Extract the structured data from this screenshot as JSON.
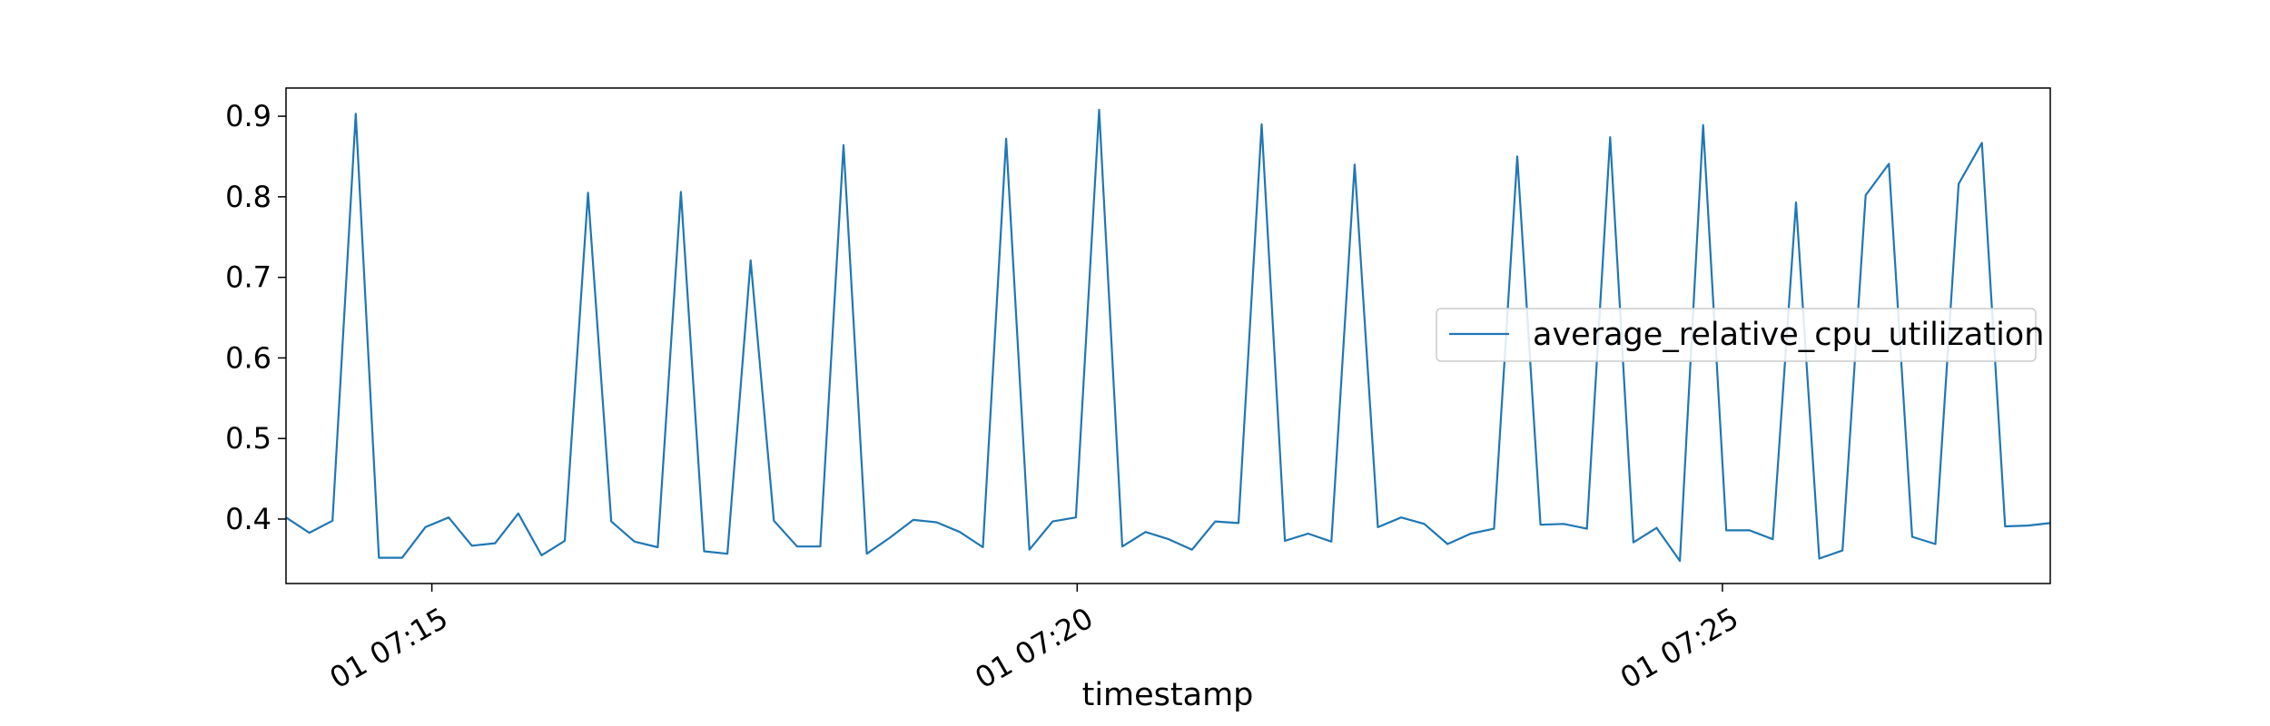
{
  "chart_data": {
    "type": "line",
    "title": "",
    "xlabel": "timestamp",
    "ylabel": "",
    "x_ticks": [
      {
        "minute": 15,
        "label": "01 07:15"
      },
      {
        "minute": 20,
        "label": "01 07:20"
      },
      {
        "minute": 25,
        "label": "01 07:25"
      }
    ],
    "y_ticks": [
      0.4,
      0.5,
      0.6,
      0.7,
      0.8,
      0.9
    ],
    "y_tick_labels": [
      "0.4",
      "0.5",
      "0.6",
      "0.7",
      "0.8",
      "0.9"
    ],
    "xlim_minutes": [
      13.87,
      27.54
    ],
    "ylim": [
      0.32,
      0.935
    ],
    "grid": false,
    "legend": "center-right",
    "colors": {
      "series": "#1f77b4"
    },
    "series": [
      {
        "name": "average_relative_cpu_utilization",
        "x_minutes": [
          13.87,
          14.05,
          14.23,
          14.41,
          14.59,
          14.77,
          14.95,
          15.13,
          15.31,
          15.49,
          15.67,
          15.85,
          16.03,
          16.21,
          16.39,
          16.57,
          16.75,
          16.93,
          17.11,
          17.29,
          17.47,
          17.65,
          17.83,
          18.01,
          18.19,
          18.37,
          18.55,
          18.73,
          18.91,
          19.09,
          19.27,
          19.45,
          19.63,
          19.81,
          19.99,
          20.17,
          20.35,
          20.53,
          20.71,
          20.89,
          21.07,
          21.25,
          21.43,
          21.61,
          21.79,
          21.97,
          22.15,
          22.33,
          22.51,
          22.69,
          22.87,
          23.05,
          23.23,
          23.41,
          23.59,
          23.77,
          23.95,
          24.13,
          24.31,
          24.49,
          24.67,
          24.85,
          25.03,
          25.21,
          25.39,
          25.57,
          25.75,
          25.93,
          26.11,
          26.29,
          26.47,
          26.65,
          26.83,
          27.01,
          27.19,
          27.37,
          27.54
        ],
        "y": [
          0.402,
          0.383,
          0.398,
          0.903,
          0.352,
          0.352,
          0.39,
          0.402,
          0.367,
          0.37,
          0.407,
          0.355,
          0.373,
          0.805,
          0.397,
          0.372,
          0.365,
          0.806,
          0.36,
          0.357,
          0.721,
          0.398,
          0.366,
          0.366,
          0.864,
          0.357,
          0.377,
          0.399,
          0.396,
          0.384,
          0.365,
          0.872,
          0.362,
          0.397,
          0.402,
          0.908,
          0.366,
          0.384,
          0.375,
          0.362,
          0.397,
          0.395,
          0.89,
          0.373,
          0.382,
          0.372,
          0.84,
          0.39,
          0.402,
          0.394,
          0.369,
          0.382,
          0.388,
          0.85,
          0.393,
          0.394,
          0.388,
          0.874,
          0.371,
          0.389,
          0.348,
          0.889,
          0.386,
          0.386,
          0.375,
          0.793,
          0.351,
          0.361,
          0.802,
          0.841,
          0.378,
          0.369,
          0.816,
          0.867,
          0.391,
          0.392,
          0.395
        ]
      }
    ]
  }
}
